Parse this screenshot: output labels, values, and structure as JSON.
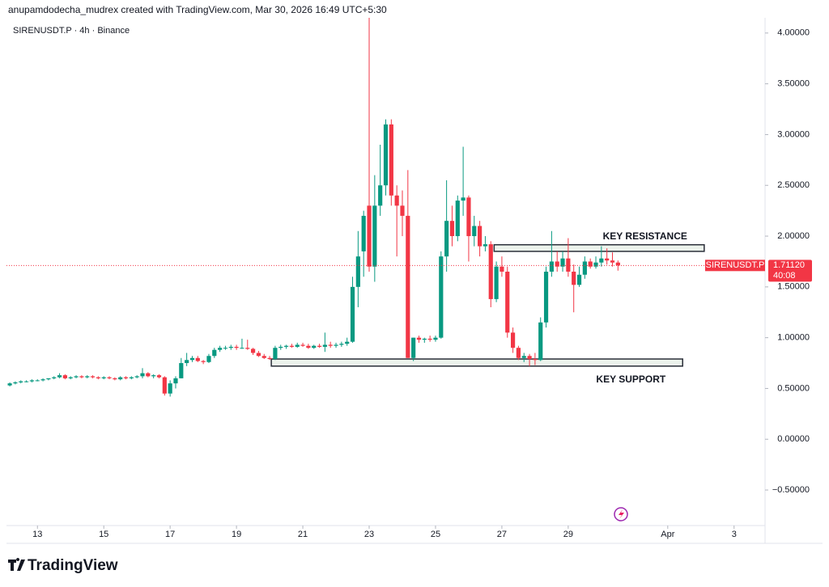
{
  "header": {
    "credit": "anupamdodecha_mudrex created with TradingView.com, Mar 30, 2026 16:49 UTC+5:30",
    "brand": "TradingView"
  },
  "chart_data": {
    "type": "candlestick",
    "title": "SIRENUSDT.P · 4h · Binance",
    "up_color": "#089981",
    "down_color": "#f23645",
    "ohlc": [
      [
        0.53,
        0.56,
        0.52,
        0.55
      ],
      [
        0.55,
        0.57,
        0.54,
        0.56
      ],
      [
        0.56,
        0.58,
        0.55,
        0.57
      ],
      [
        0.57,
        0.58,
        0.56,
        0.57
      ],
      [
        0.57,
        0.59,
        0.56,
        0.58
      ],
      [
        0.58,
        0.59,
        0.57,
        0.58
      ],
      [
        0.58,
        0.6,
        0.57,
        0.59
      ],
      [
        0.59,
        0.6,
        0.58,
        0.6
      ],
      [
        0.6,
        0.62,
        0.59,
        0.61
      ],
      [
        0.61,
        0.65,
        0.6,
        0.63
      ],
      [
        0.63,
        0.64,
        0.59,
        0.6
      ],
      [
        0.6,
        0.62,
        0.59,
        0.61
      ],
      [
        0.61,
        0.63,
        0.6,
        0.62
      ],
      [
        0.62,
        0.63,
        0.6,
        0.61
      ],
      [
        0.61,
        0.63,
        0.6,
        0.62
      ],
      [
        0.62,
        0.63,
        0.6,
        0.61
      ],
      [
        0.61,
        0.62,
        0.59,
        0.6
      ],
      [
        0.6,
        0.62,
        0.59,
        0.61
      ],
      [
        0.61,
        0.62,
        0.59,
        0.6
      ],
      [
        0.6,
        0.61,
        0.58,
        0.59
      ],
      [
        0.59,
        0.62,
        0.58,
        0.61
      ],
      [
        0.61,
        0.62,
        0.59,
        0.6
      ],
      [
        0.6,
        0.62,
        0.59,
        0.61
      ],
      [
        0.61,
        0.63,
        0.6,
        0.62
      ],
      [
        0.62,
        0.7,
        0.6,
        0.65
      ],
      [
        0.65,
        0.66,
        0.61,
        0.62
      ],
      [
        0.62,
        0.64,
        0.6,
        0.63
      ],
      [
        0.63,
        0.64,
        0.6,
        0.61
      ],
      [
        0.61,
        0.62,
        0.43,
        0.45
      ],
      [
        0.45,
        0.58,
        0.42,
        0.55
      ],
      [
        0.55,
        0.62,
        0.5,
        0.6
      ],
      [
        0.6,
        0.8,
        0.6,
        0.75
      ],
      [
        0.75,
        0.85,
        0.72,
        0.78
      ],
      [
        0.78,
        0.82,
        0.76,
        0.8
      ],
      [
        0.8,
        0.82,
        0.76,
        0.77
      ],
      [
        0.77,
        0.78,
        0.74,
        0.76
      ],
      [
        0.76,
        0.84,
        0.75,
        0.82
      ],
      [
        0.82,
        0.9,
        0.8,
        0.88
      ],
      [
        0.88,
        0.92,
        0.86,
        0.9
      ],
      [
        0.9,
        0.92,
        0.88,
        0.9
      ],
      [
        0.9,
        0.93,
        0.88,
        0.91
      ],
      [
        0.91,
        0.93,
        0.88,
        0.9
      ],
      [
        0.9,
        0.99,
        0.89,
        0.9
      ],
      [
        0.9,
        0.98,
        0.88,
        0.89
      ],
      [
        0.89,
        0.9,
        0.83,
        0.85
      ],
      [
        0.85,
        0.87,
        0.81,
        0.82
      ],
      [
        0.82,
        0.84,
        0.79,
        0.8
      ],
      [
        0.8,
        0.82,
        0.78,
        0.79
      ],
      [
        0.79,
        0.92,
        0.78,
        0.9
      ],
      [
        0.9,
        0.93,
        0.88,
        0.91
      ],
      [
        0.91,
        0.93,
        0.89,
        0.92
      ],
      [
        0.92,
        0.94,
        0.9,
        0.91
      ],
      [
        0.91,
        0.95,
        0.9,
        0.93
      ],
      [
        0.93,
        0.95,
        0.91,
        0.92
      ],
      [
        0.92,
        0.94,
        0.89,
        0.9
      ],
      [
        0.9,
        0.93,
        0.89,
        0.92
      ],
      [
        0.92,
        0.94,
        0.9,
        0.91
      ],
      [
        0.91,
        1.05,
        0.86,
        0.93
      ],
      [
        0.93,
        0.96,
        0.9,
        0.92
      ],
      [
        0.92,
        0.95,
        0.9,
        0.93
      ],
      [
        0.93,
        0.96,
        0.91,
        0.94
      ],
      [
        0.94,
        1.0,
        0.92,
        0.96
      ],
      [
        0.96,
        1.6,
        0.95,
        1.5
      ],
      [
        1.5,
        2.05,
        1.3,
        1.8
      ],
      [
        1.85,
        2.25,
        1.6,
        2.2
      ],
      [
        2.3,
        4.15,
        1.65,
        1.7
      ],
      [
        1.7,
        2.6,
        1.55,
        2.3
      ],
      [
        2.3,
        2.9,
        2.2,
        2.5
      ],
      [
        2.5,
        3.15,
        2.4,
        3.1
      ],
      [
        3.1,
        3.15,
        2.3,
        2.4
      ],
      [
        2.4,
        2.5,
        1.8,
        2.3
      ],
      [
        2.3,
        2.45,
        2.0,
        2.2
      ],
      [
        2.2,
        2.65,
        0.8,
        0.8
      ],
      [
        0.8,
        1.0,
        0.77,
        1.0
      ],
      [
        1.0,
        1.02,
        0.95,
        0.98
      ],
      [
        0.98,
        1.0,
        0.95,
        0.99
      ],
      [
        0.99,
        1.02,
        0.96,
        0.98
      ],
      [
        0.98,
        1.02,
        0.96,
        1.0
      ],
      [
        1.0,
        1.85,
        0.99,
        1.8
      ],
      [
        1.8,
        2.55,
        1.65,
        2.15
      ],
      [
        2.15,
        2.3,
        1.9,
        2.0
      ],
      [
        2.0,
        2.4,
        1.95,
        2.35
      ],
      [
        2.35,
        2.88,
        2.2,
        2.38
      ],
      [
        2.38,
        2.4,
        1.75,
        2.0
      ],
      [
        2.0,
        2.2,
        1.9,
        2.1
      ],
      [
        2.1,
        2.15,
        1.8,
        1.9
      ],
      [
        1.9,
        2.0,
        1.85,
        1.92
      ],
      [
        1.92,
        1.95,
        1.3,
        1.38
      ],
      [
        1.38,
        1.75,
        1.35,
        1.7
      ],
      [
        1.7,
        1.8,
        1.6,
        1.65
      ],
      [
        1.65,
        1.7,
        1.0,
        1.05
      ],
      [
        1.05,
        1.1,
        0.85,
        0.9
      ],
      [
        0.9,
        0.92,
        0.78,
        0.8
      ],
      [
        0.8,
        0.85,
        0.76,
        0.82
      ],
      [
        0.82,
        0.84,
        0.72,
        0.79
      ],
      [
        0.79,
        0.85,
        0.73,
        0.78
      ],
      [
        0.78,
        1.2,
        0.77,
        1.15
      ],
      [
        1.15,
        1.7,
        1.1,
        1.65
      ],
      [
        1.65,
        2.05,
        1.6,
        1.75
      ],
      [
        1.75,
        1.85,
        1.65,
        1.7
      ],
      [
        1.7,
        1.85,
        1.65,
        1.78
      ],
      [
        1.78,
        1.98,
        1.6,
        1.65
      ],
      [
        1.65,
        1.72,
        1.25,
        1.52
      ],
      [
        1.52,
        1.7,
        1.5,
        1.62
      ],
      [
        1.62,
        1.8,
        1.58,
        1.75
      ],
      [
        1.75,
        1.78,
        1.68,
        1.7
      ],
      [
        1.7,
        1.8,
        1.68,
        1.74
      ],
      [
        1.74,
        1.9,
        1.7,
        1.78
      ],
      [
        1.78,
        1.88,
        1.72,
        1.76
      ],
      [
        1.76,
        1.84,
        1.7,
        1.74
      ],
      [
        1.74,
        1.76,
        1.66,
        1.7112
      ]
    ],
    "xlim": [
      -0.6,
      136.6
    ],
    "xticks": [
      {
        "value": 5,
        "label": "13"
      },
      {
        "value": 17,
        "label": "15"
      },
      {
        "value": 29,
        "label": "17"
      },
      {
        "value": 41,
        "label": "19"
      },
      {
        "value": 53,
        "label": "21"
      },
      {
        "value": 65,
        "label": "23"
      },
      {
        "value": 77,
        "label": "25"
      },
      {
        "value": 89,
        "label": "27"
      },
      {
        "value": 101,
        "label": "29"
      },
      {
        "value": 119,
        "label": "Apr"
      },
      {
        "value": 131,
        "label": "3"
      }
    ],
    "ylim": [
      -0.85,
      4.15
    ],
    "yticks": [
      {
        "value": -0.5,
        "label": "−0.50000"
      },
      {
        "value": 0,
        "label": "0.00000"
      },
      {
        "value": 0.5,
        "label": "0.50000"
      },
      {
        "value": 1,
        "label": "1.00000"
      },
      {
        "value": 1.5,
        "label": "1.50000"
      },
      {
        "value": 2,
        "label": "2.00000"
      },
      {
        "value": 2.5,
        "label": "2.50000"
      },
      {
        "value": 3,
        "label": "3.00000"
      },
      {
        "value": 3.5,
        "label": "3.50000"
      },
      {
        "value": 4,
        "label": "4.00000"
      }
    ],
    "last_price": {
      "value": 1.7112,
      "label": "1.71120",
      "symbol": "SIRENUSDT.P",
      "countdown": "40:08"
    },
    "zones": [
      {
        "label": "KEY RESISTANCE",
        "low": 1.85,
        "high": 1.915,
        "start": 87.6,
        "end": 125.6,
        "label_position": "above"
      },
      {
        "label": "KEY SUPPORT",
        "low": 0.72,
        "high": 0.79,
        "start": 47.3,
        "end": 121.7,
        "label_position": "below"
      }
    ]
  }
}
